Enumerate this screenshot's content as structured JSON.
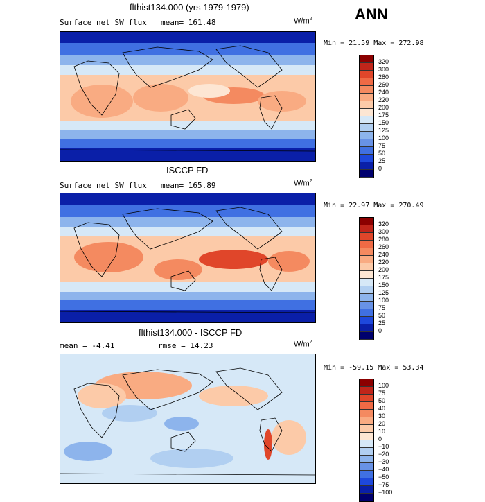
{
  "annual_label": "ANN",
  "panels": [
    {
      "title": "flthist134.000 (yrs 1979-1979)",
      "left_header": "Surface net SW flux",
      "mid_header": "mean= 161.48",
      "units": "W/m",
      "units_sup": "2",
      "stats": "Min =  21.59 Max = 272.98",
      "colorbar_labels": [
        "320",
        "300",
        "280",
        "260",
        "240",
        "220",
        "200",
        "175",
        "150",
        "125",
        "100",
        "75",
        "50",
        "25",
        "0"
      ],
      "colorbar_colors": [
        "#8b0000",
        "#c0251a",
        "#e0462a",
        "#ef6a45",
        "#f48a60",
        "#f9ab82",
        "#fccaa8",
        "#fde6d3",
        "#d6e8f7",
        "#b1cff1",
        "#8db4ec",
        "#6892e6",
        "#4070e2",
        "#1e48dc",
        "#0a1fa8",
        "#00006e"
      ]
    },
    {
      "title": "ISCCP FD",
      "left_header": "Surface net SW flux",
      "mid_header": "mean= 165.89",
      "units": "W/m",
      "units_sup": "2",
      "stats": "Min =  22.97 Max = 270.49",
      "colorbar_labels": [
        "320",
        "300",
        "280",
        "260",
        "240",
        "220",
        "200",
        "175",
        "150",
        "125",
        "100",
        "75",
        "50",
        "25",
        "0"
      ],
      "colorbar_colors": [
        "#8b0000",
        "#c0251a",
        "#e0462a",
        "#ef6a45",
        "#f48a60",
        "#f9ab82",
        "#fccaa8",
        "#fde6d3",
        "#d6e8f7",
        "#b1cff1",
        "#8db4ec",
        "#6892e6",
        "#4070e2",
        "#1e48dc",
        "#0a1fa8",
        "#00006e"
      ]
    },
    {
      "title": "flthist134.000 - ISCCP FD",
      "left_header": "mean =   -4.41",
      "mid_header": "rmse =  14.23",
      "units": "W/m",
      "units_sup": "2",
      "stats": "Min = -59.15 Max =  53.34",
      "colorbar_labels": [
        "100",
        "75",
        "50",
        "40",
        "30",
        "20",
        "10",
        "0",
        "−10",
        "−20",
        "−30",
        "−40",
        "−50",
        "−75",
        "−100"
      ],
      "colorbar_colors": [
        "#8b0000",
        "#c0251a",
        "#e0462a",
        "#ef6a45",
        "#f48a60",
        "#f9ab82",
        "#fccaa8",
        "#fde6d3",
        "#d6e8f7",
        "#b1cff1",
        "#8db4ec",
        "#6892e6",
        "#4070e2",
        "#1e48dc",
        "#0a1fa8",
        "#00006e"
      ]
    }
  ]
}
